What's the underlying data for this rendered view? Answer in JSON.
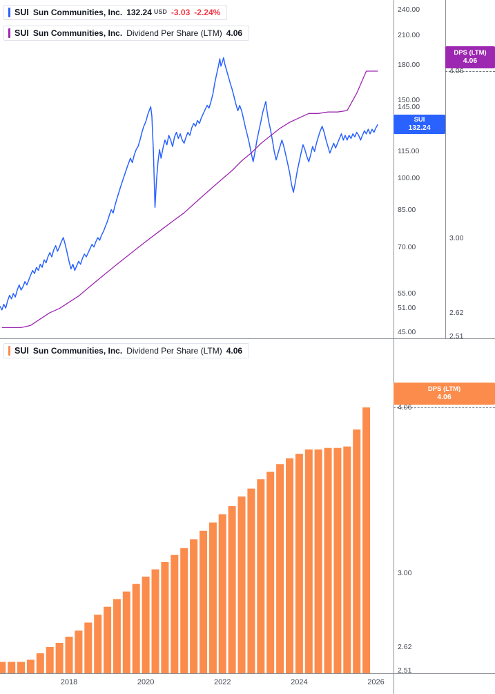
{
  "top_panel": {
    "legend_price": {
      "symbol": "SUI",
      "name": "Sun Communities, Inc.",
      "price": "132.24",
      "currency": "USD",
      "change": "-3.03",
      "change_pct": "-2.24%"
    },
    "legend_dps": {
      "symbol": "SUI",
      "name": "Sun Communities, Inc.",
      "indicator": "Dividend Per Share (LTM)",
      "value": "4.06"
    },
    "price_axis_ticks": [
      "240.00",
      "210.00",
      "180.00",
      "150.00",
      "145.00",
      "115.00",
      "100.00",
      "85.00",
      "70.00",
      "55.00",
      "51.00",
      "45.00"
    ],
    "dividend_axis_ticks": [
      "4.06",
      "3.00",
      "2.62",
      "2.51"
    ],
    "price_label": {
      "symbol": "SUI",
      "value": "132.24"
    },
    "dps_label": {
      "title": "DPS (LTM)",
      "value": "4.06"
    }
  },
  "bottom_panel": {
    "legend": {
      "symbol": "SUI",
      "name": "Sun Communities, Inc.",
      "indicator": "Dividend Per Share (LTM)",
      "value": "4.06"
    },
    "axis_ticks": [
      "4.06",
      "3.00",
      "2.62",
      "2.51"
    ],
    "dps_label": {
      "title": "DPS (LTM)",
      "value": "4.06"
    }
  },
  "time_axis": {
    "labels": [
      "2018",
      "2020",
      "2022",
      "2024",
      "2026"
    ]
  },
  "colors": {
    "price_line": "#2962FF",
    "dps_line": "#9C27B0",
    "dps_bars": "#FB8C4C",
    "negative": "#F23645",
    "axis_text": "#434651",
    "border": "#8c8f96"
  },
  "chart_data": [
    {
      "type": "line",
      "name": "SUI Sun Communities, Inc. price",
      "units": "USD",
      "scale": "log",
      "ylim": [
        45,
        240
      ],
      "last_value": 132.24,
      "change": -3.03,
      "change_pct": -2.24,
      "x_unit": "decimal_year",
      "x_range": [
        2016.2,
        2026.1
      ],
      "points": [
        [
          2016.2,
          51.5
        ],
        [
          2016.25,
          50.5
        ],
        [
          2016.3,
          52
        ],
        [
          2016.35,
          51
        ],
        [
          2016.4,
          53
        ],
        [
          2016.45,
          54.5
        ],
        [
          2016.5,
          53.5
        ],
        [
          2016.55,
          55
        ],
        [
          2016.6,
          54
        ],
        [
          2016.65,
          56
        ],
        [
          2016.7,
          57.5
        ],
        [
          2016.75,
          56
        ],
        [
          2016.8,
          57
        ],
        [
          2016.85,
          58.5
        ],
        [
          2016.9,
          57.5
        ],
        [
          2016.95,
          59
        ],
        [
          2017.0,
          60.5
        ],
        [
          2017.05,
          62
        ],
        [
          2017.1,
          61
        ],
        [
          2017.15,
          63
        ],
        [
          2017.2,
          62
        ],
        [
          2017.25,
          64
        ],
        [
          2017.3,
          63
        ],
        [
          2017.35,
          65.5
        ],
        [
          2017.4,
          64.5
        ],
        [
          2017.45,
          66.5
        ],
        [
          2017.5,
          68
        ],
        [
          2017.55,
          66.5
        ],
        [
          2017.6,
          69
        ],
        [
          2017.65,
          70.5
        ],
        [
          2017.7,
          68.5
        ],
        [
          2017.75,
          70
        ],
        [
          2017.8,
          72
        ],
        [
          2017.85,
          73.5
        ],
        [
          2017.9,
          71
        ],
        [
          2017.95,
          68
        ],
        [
          2018.0,
          65
        ],
        [
          2018.05,
          62.5
        ],
        [
          2018.1,
          64
        ],
        [
          2018.15,
          62
        ],
        [
          2018.2,
          63.5
        ],
        [
          2018.25,
          65
        ],
        [
          2018.3,
          64
        ],
        [
          2018.35,
          66
        ],
        [
          2018.4,
          67.5
        ],
        [
          2018.45,
          66.5
        ],
        [
          2018.5,
          68
        ],
        [
          2018.55,
          69.5
        ],
        [
          2018.6,
          71
        ],
        [
          2018.65,
          70
        ],
        [
          2018.7,
          72
        ],
        [
          2018.75,
          73.5
        ],
        [
          2018.8,
          72.5
        ],
        [
          2018.85,
          74.5
        ],
        [
          2018.9,
          76
        ],
        [
          2018.95,
          78
        ],
        [
          2019.0,
          80
        ],
        [
          2019.05,
          82.5
        ],
        [
          2019.1,
          85
        ],
        [
          2019.15,
          83.5
        ],
        [
          2019.2,
          87
        ],
        [
          2019.25,
          90
        ],
        [
          2019.3,
          93
        ],
        [
          2019.35,
          96
        ],
        [
          2019.4,
          99
        ],
        [
          2019.45,
          102
        ],
        [
          2019.5,
          105
        ],
        [
          2019.55,
          108
        ],
        [
          2019.6,
          111
        ],
        [
          2019.65,
          108.5
        ],
        [
          2019.7,
          113
        ],
        [
          2019.75,
          116
        ],
        [
          2019.8,
          118
        ],
        [
          2019.85,
          122
        ],
        [
          2019.9,
          127
        ],
        [
          2019.95,
          131
        ],
        [
          2020.0,
          134
        ],
        [
          2020.05,
          139
        ],
        [
          2020.1,
          143
        ],
        [
          2020.13,
          145
        ],
        [
          2020.16,
          138
        ],
        [
          2020.2,
          115
        ],
        [
          2020.24,
          86
        ],
        [
          2020.28,
          99
        ],
        [
          2020.32,
          109
        ],
        [
          2020.36,
          116
        ],
        [
          2020.4,
          111
        ],
        [
          2020.45,
          117
        ],
        [
          2020.5,
          122
        ],
        [
          2020.55,
          119
        ],
        [
          2020.6,
          125
        ],
        [
          2020.65,
          122
        ],
        [
          2020.7,
          118
        ],
        [
          2020.75,
          124
        ],
        [
          2020.8,
          127
        ],
        [
          2020.85,
          123
        ],
        [
          2020.9,
          126
        ],
        [
          2020.95,
          122
        ],
        [
          2021.0,
          120
        ],
        [
          2021.05,
          124
        ],
        [
          2021.1,
          127
        ],
        [
          2021.15,
          125
        ],
        [
          2021.2,
          130
        ],
        [
          2021.25,
          133
        ],
        [
          2021.3,
          131
        ],
        [
          2021.35,
          135
        ],
        [
          2021.4,
          133
        ],
        [
          2021.45,
          137
        ],
        [
          2021.5,
          140
        ],
        [
          2021.55,
          143
        ],
        [
          2021.6,
          146
        ],
        [
          2021.65,
          144
        ],
        [
          2021.7,
          149
        ],
        [
          2021.75,
          155
        ],
        [
          2021.8,
          164
        ],
        [
          2021.85,
          172
        ],
        [
          2021.9,
          180
        ],
        [
          2021.93,
          186
        ],
        [
          2021.96,
          179
        ],
        [
          2022.0,
          183
        ],
        [
          2022.03,
          187
        ],
        [
          2022.06,
          181
        ],
        [
          2022.1,
          176
        ],
        [
          2022.15,
          170
        ],
        [
          2022.2,
          164
        ],
        [
          2022.25,
          159
        ],
        [
          2022.3,
          153
        ],
        [
          2022.35,
          147
        ],
        [
          2022.4,
          142
        ],
        [
          2022.45,
          146
        ],
        [
          2022.5,
          142
        ],
        [
          2022.55,
          136
        ],
        [
          2022.6,
          130
        ],
        [
          2022.65,
          125
        ],
        [
          2022.7,
          120
        ],
        [
          2022.75,
          114
        ],
        [
          2022.8,
          109
        ],
        [
          2022.85,
          115
        ],
        [
          2022.9,
          122
        ],
        [
          2022.95,
          128
        ],
        [
          2023.0,
          134
        ],
        [
          2023.05,
          141
        ],
        [
          2023.1,
          146
        ],
        [
          2023.13,
          149
        ],
        [
          2023.16,
          142
        ],
        [
          2023.2,
          135
        ],
        [
          2023.25,
          129
        ],
        [
          2023.3,
          122
        ],
        [
          2023.35,
          115
        ],
        [
          2023.4,
          110
        ],
        [
          2023.45,
          114
        ],
        [
          2023.5,
          118
        ],
        [
          2023.55,
          122
        ],
        [
          2023.6,
          118
        ],
        [
          2023.65,
          113
        ],
        [
          2023.7,
          108
        ],
        [
          2023.75,
          103
        ],
        [
          2023.8,
          97
        ],
        [
          2023.85,
          93
        ],
        [
          2023.9,
          98
        ],
        [
          2023.95,
          104
        ],
        [
          2024.0,
          109
        ],
        [
          2024.05,
          114
        ],
        [
          2024.1,
          119
        ],
        [
          2024.15,
          116
        ],
        [
          2024.2,
          112
        ],
        [
          2024.25,
          109
        ],
        [
          2024.3,
          113
        ],
        [
          2024.35,
          118
        ],
        [
          2024.4,
          115
        ],
        [
          2024.45,
          120
        ],
        [
          2024.5,
          124
        ],
        [
          2024.55,
          128
        ],
        [
          2024.6,
          131
        ],
        [
          2024.65,
          127
        ],
        [
          2024.7,
          122
        ],
        [
          2024.75,
          118
        ],
        [
          2024.8,
          114
        ],
        [
          2024.85,
          117
        ],
        [
          2024.9,
          120
        ],
        [
          2024.95,
          117
        ],
        [
          2025.0,
          120
        ],
        [
          2025.05,
          123
        ],
        [
          2025.1,
          126
        ],
        [
          2025.15,
          122
        ],
        [
          2025.2,
          125
        ],
        [
          2025.25,
          122
        ],
        [
          2025.3,
          125
        ],
        [
          2025.35,
          123
        ],
        [
          2025.4,
          126
        ],
        [
          2025.45,
          124
        ],
        [
          2025.5,
          127
        ],
        [
          2025.55,
          125
        ],
        [
          2025.6,
          122
        ],
        [
          2025.65,
          125
        ],
        [
          2025.7,
          128
        ],
        [
          2025.75,
          126
        ],
        [
          2025.8,
          129
        ],
        [
          2025.85,
          126
        ],
        [
          2025.9,
          129
        ],
        [
          2025.95,
          127
        ],
        [
          2026.0,
          130
        ],
        [
          2026.05,
          132.24
        ]
      ]
    },
    {
      "type": "line",
      "name": "Dividend Per Share (LTM) overlay",
      "scale": "log",
      "ylim": [
        2.51,
        4.06
      ],
      "last_value": 4.06,
      "x_unit": "decimal_year",
      "points": [
        [
          2016.25,
          2.55
        ],
        [
          2016.5,
          2.55
        ],
        [
          2016.75,
          2.55
        ],
        [
          2017.0,
          2.56
        ],
        [
          2017.25,
          2.59
        ],
        [
          2017.5,
          2.62
        ],
        [
          2017.75,
          2.64
        ],
        [
          2018.0,
          2.67
        ],
        [
          2018.25,
          2.7
        ],
        [
          2018.5,
          2.74
        ],
        [
          2018.75,
          2.78
        ],
        [
          2019.0,
          2.82
        ],
        [
          2019.25,
          2.86
        ],
        [
          2019.5,
          2.9
        ],
        [
          2019.75,
          2.94
        ],
        [
          2020.0,
          2.98
        ],
        [
          2020.25,
          3.02
        ],
        [
          2020.5,
          3.06
        ],
        [
          2020.75,
          3.1
        ],
        [
          2021.0,
          3.14
        ],
        [
          2021.25,
          3.19
        ],
        [
          2021.5,
          3.24
        ],
        [
          2021.75,
          3.29
        ],
        [
          2022.0,
          3.34
        ],
        [
          2022.25,
          3.39
        ],
        [
          2022.5,
          3.45
        ],
        [
          2022.75,
          3.5
        ],
        [
          2023.0,
          3.56
        ],
        [
          2023.25,
          3.61
        ],
        [
          2023.5,
          3.66
        ],
        [
          2023.75,
          3.7
        ],
        [
          2024.0,
          3.73
        ],
        [
          2024.25,
          3.76
        ],
        [
          2024.5,
          3.76
        ],
        [
          2024.75,
          3.77
        ],
        [
          2025.0,
          3.77
        ],
        [
          2025.25,
          3.78
        ],
        [
          2025.5,
          3.9
        ],
        [
          2025.75,
          4.06
        ],
        [
          2026.05,
          4.06
        ]
      ]
    },
    {
      "type": "bar",
      "name": "Dividend Per Share (LTM)",
      "scale": "log",
      "ylim": [
        2.51,
        4.06
      ],
      "last_value": 4.06,
      "x_unit": "decimal_year_quarterly",
      "points": [
        [
          2016.25,
          2.55
        ],
        [
          2016.5,
          2.55
        ],
        [
          2016.75,
          2.55
        ],
        [
          2017.0,
          2.56
        ],
        [
          2017.25,
          2.59
        ],
        [
          2017.5,
          2.62
        ],
        [
          2017.75,
          2.64
        ],
        [
          2018.0,
          2.67
        ],
        [
          2018.25,
          2.7
        ],
        [
          2018.5,
          2.74
        ],
        [
          2018.75,
          2.78
        ],
        [
          2019.0,
          2.82
        ],
        [
          2019.25,
          2.86
        ],
        [
          2019.5,
          2.9
        ],
        [
          2019.75,
          2.94
        ],
        [
          2020.0,
          2.98
        ],
        [
          2020.25,
          3.02
        ],
        [
          2020.5,
          3.06
        ],
        [
          2020.75,
          3.1
        ],
        [
          2021.0,
          3.14
        ],
        [
          2021.25,
          3.19
        ],
        [
          2021.5,
          3.24
        ],
        [
          2021.75,
          3.29
        ],
        [
          2022.0,
          3.34
        ],
        [
          2022.25,
          3.39
        ],
        [
          2022.5,
          3.45
        ],
        [
          2022.75,
          3.5
        ],
        [
          2023.0,
          3.56
        ],
        [
          2023.25,
          3.61
        ],
        [
          2023.5,
          3.66
        ],
        [
          2023.75,
          3.7
        ],
        [
          2024.0,
          3.73
        ],
        [
          2024.25,
          3.76
        ],
        [
          2024.5,
          3.76
        ],
        [
          2024.75,
          3.77
        ],
        [
          2025.0,
          3.77
        ],
        [
          2025.25,
          3.78
        ],
        [
          2025.5,
          3.9
        ],
        [
          2025.75,
          4.06
        ]
      ]
    }
  ]
}
